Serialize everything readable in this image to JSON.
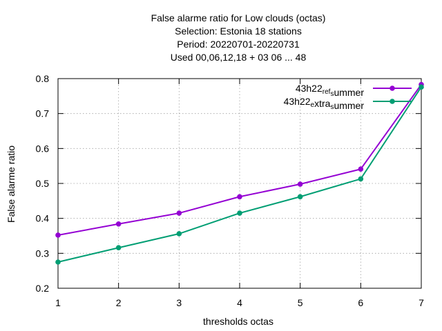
{
  "chart_data": {
    "type": "line",
    "title_lines": [
      "False alarme ratio  for Low clouds (octas)",
      "Selection: Estonia     18 stations",
      "Period: 20220701-20220731",
      "Used  00,06,12,18  + 03 06 ... 48"
    ],
    "xlabel": "thresholds octas",
    "ylabel": "False alarme ratio",
    "x": [
      1,
      2,
      3,
      4,
      5,
      6,
      7
    ],
    "xlim": [
      1,
      7
    ],
    "ylim": [
      0.2,
      0.8
    ],
    "xticks": [
      1,
      2,
      3,
      4,
      5,
      6,
      7
    ],
    "yticks": [
      0.2,
      0.3,
      0.4,
      0.5,
      0.6,
      0.7,
      0.8
    ],
    "grid": true,
    "legend_position": "top-right",
    "series": [
      {
        "name": "43h22_ref_summer",
        "legend_parts": [
          {
            "t": "43h22",
            "sub": false
          },
          {
            "t": "ref",
            "sub": true
          },
          {
            "t": "s",
            "sub": true
          },
          {
            "t": "ummer",
            "sub": false
          }
        ],
        "color": "#9400d3",
        "values": [
          0.352,
          0.384,
          0.415,
          0.462,
          0.498,
          0.541,
          0.783
        ]
      },
      {
        "name": "43h22_extra_summer",
        "legend_parts": [
          {
            "t": "43h22",
            "sub": false
          },
          {
            "t": "e",
            "sub": true
          },
          {
            "t": "xtra",
            "sub": false
          },
          {
            "t": "s",
            "sub": true
          },
          {
            "t": "ummer",
            "sub": false
          }
        ],
        "color": "#009e73",
        "values": [
          0.275,
          0.316,
          0.356,
          0.415,
          0.462,
          0.513,
          0.776
        ]
      }
    ]
  }
}
